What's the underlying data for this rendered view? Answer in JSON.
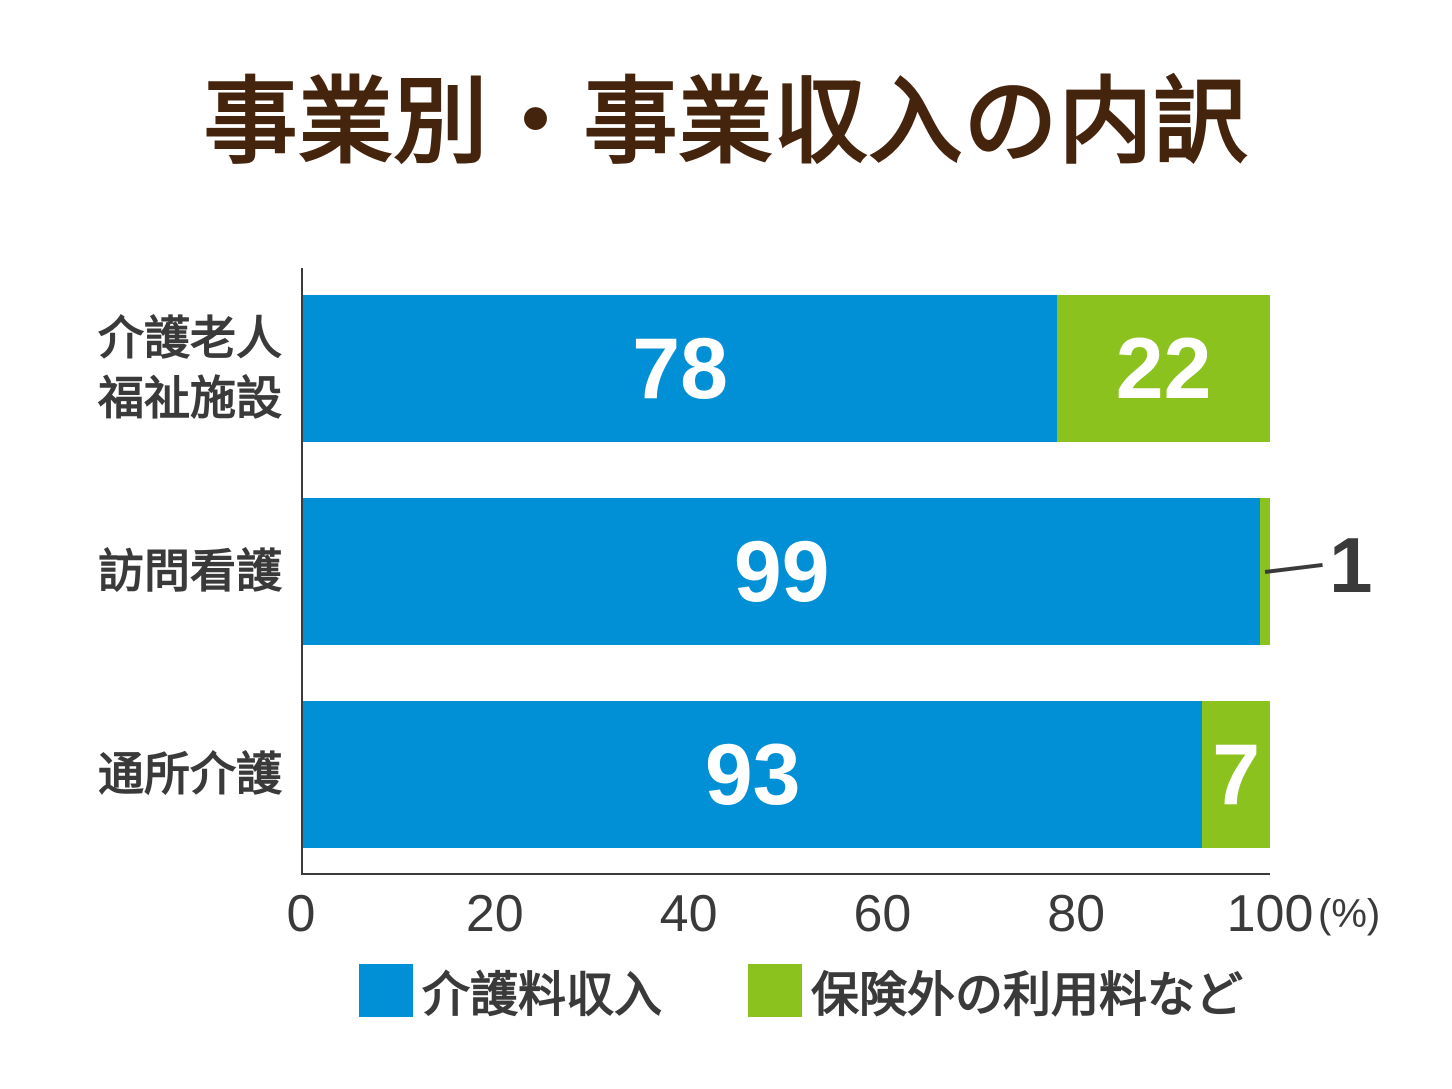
{
  "title": "事業別・事業収入の内訳",
  "colors": {
    "blue": "#018fd6",
    "green": "#8cc21e",
    "title_brown": "#44240d",
    "text_dark": "#3a3a3a",
    "axis": "#3b3b3b",
    "value_text": "#ffffff",
    "background": "#ffffff"
  },
  "chart_data": {
    "type": "bar",
    "stacked": true,
    "orientation": "horizontal",
    "title": "事業別・事業収入の内訳",
    "categories": [
      "介護老人\n福祉施設",
      "訪問看護",
      "通所介護"
    ],
    "series": [
      {
        "name": "介護料収入",
        "color": "#018fd6",
        "values": [
          78,
          99,
          93
        ]
      },
      {
        "name": "保険外の利用料など",
        "color": "#8cc21e",
        "values": [
          22,
          1,
          7
        ]
      }
    ],
    "xlim": [
      0,
      100
    ],
    "x_ticks": [
      0,
      20,
      40,
      60,
      80,
      100
    ],
    "x_unit_label": "(%)",
    "grid": false,
    "legend_position": "bottom",
    "annotations": [
      {
        "row_index": 1,
        "series_index": 1,
        "text": "1",
        "style": "callout-outside-right"
      }
    ]
  },
  "legend": {
    "items": [
      {
        "label": "介護料収入",
        "color": "#018fd6"
      },
      {
        "label": "保険外の利用料など",
        "color": "#8cc21e"
      }
    ]
  }
}
